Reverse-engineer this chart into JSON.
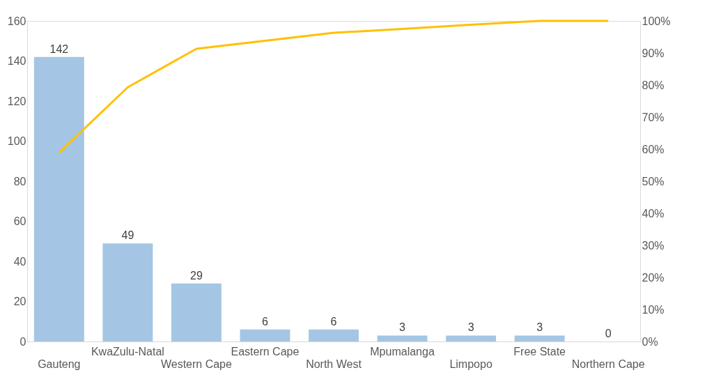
{
  "chart_data": {
    "type": "bar",
    "categories": [
      "Gauteng",
      "KwaZulu-Natal",
      "Western Cape",
      "Eastern Cape",
      "North West",
      "Mpumalanga",
      "Limpopo",
      "Free State",
      "Northern Cape"
    ],
    "series": [
      {
        "color": "#a4c6e4",
        "values": [
          142,
          49,
          29,
          6,
          6,
          3,
          3,
          3,
          0
        ],
        "value_labels": [
          "142",
          "49",
          "29",
          "6",
          "6",
          "3",
          "3",
          "3",
          "0"
        ]
      },
      {
        "type": "line",
        "axis": "y2",
        "color": "#ffc000",
        "values": [
          58.9,
          79.3,
          91.3,
          93.8,
          96.3,
          97.5,
          98.8,
          100,
          100
        ]
      }
    ],
    "ylim": [
      0,
      160
    ],
    "yticks": [
      0,
      20,
      40,
      60,
      80,
      100,
      120,
      140,
      160
    ],
    "y2lim": [
      0,
      100
    ],
    "y2ticks": [
      {
        "value": 0,
        "label": "0%"
      },
      {
        "value": 10,
        "label": "10%"
      },
      {
        "value": 20,
        "label": "20%"
      },
      {
        "value": 30,
        "label": "30%"
      },
      {
        "value": 40,
        "label": "40%"
      },
      {
        "value": 50,
        "label": "50%"
      },
      {
        "value": 60,
        "label": "60%"
      },
      {
        "value": 70,
        "label": "70%"
      },
      {
        "value": 80,
        "label": "80%"
      },
      {
        "value": 90,
        "label": "90%"
      },
      {
        "value": 100,
        "label": "100%"
      }
    ],
    "grid": false,
    "marker": "none"
  }
}
